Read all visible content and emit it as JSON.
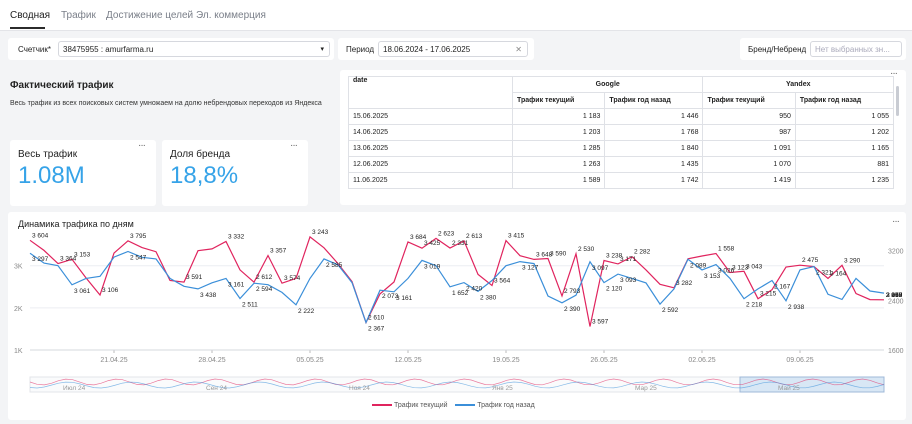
{
  "tabs": [
    {
      "label": "Сводная",
      "active": true
    },
    {
      "label": "Трафик",
      "active": false
    },
    {
      "label": "Достижение целей",
      "active": false
    },
    {
      "label": "Эл. коммерция",
      "active": false
    }
  ],
  "filters": {
    "counter_label": "Счетчик*",
    "counter_value": "38475955 : amurfarma.ru",
    "period_label": "Период",
    "period_value": "18.06.2024 - 17.06.2025",
    "brand_label": "Бренд/Небренд",
    "brand_placeholder": "Нет выбранных зн..."
  },
  "info": {
    "title": "Фактический трафик",
    "description": "Весь трафик из всех поисковых систем умножаем на долю небрендовых переходов из Яндекса"
  },
  "kpis": [
    {
      "label": "Весь трафик",
      "value": "1.08M"
    },
    {
      "label": "Доля бренда",
      "value": "18,8%"
    }
  ],
  "table": {
    "col_date": "date",
    "groups": [
      "Google",
      "Yandex"
    ],
    "sub_headers": [
      "Трафик текущий",
      "Трафик год назад",
      "Трафик текущий",
      "Трафик год назад"
    ],
    "rows": [
      [
        "15.06.2025",
        "1 183",
        "1 446",
        "950",
        "1 055"
      ],
      [
        "14.06.2025",
        "1 203",
        "1 768",
        "987",
        "1 202"
      ],
      [
        "13.06.2025",
        "1 285",
        "1 840",
        "1 091",
        "1 165"
      ],
      [
        "12.06.2025",
        "1 263",
        "1 435",
        "1 070",
        "881"
      ],
      [
        "11.06.2025",
        "1 589",
        "1 742",
        "1 419",
        "1 235"
      ]
    ]
  },
  "chart": {
    "title": "Динамика трафика по дням",
    "legend_current": "Трафик текущий",
    "legend_prev": "Трафик год назад",
    "color_current": "#e0245e",
    "color_prev": "#3b8fd9",
    "nav_labels": [
      "Июл 24",
      "Сен 24",
      "Ноя 24",
      "Янв 25",
      "Мар 25",
      "Май 25"
    ]
  },
  "chart_data": {
    "type": "line",
    "title": "Динамика трафика по дням",
    "x": [
      "2025-04-15",
      "2025-04-16",
      "2025-04-17",
      "2025-04-18",
      "2025-04-19",
      "2025-04-20",
      "2025-04-21",
      "2025-04-22",
      "2025-04-23",
      "2025-04-24",
      "2025-04-25",
      "2025-04-26",
      "2025-04-27",
      "2025-04-28",
      "2025-04-29",
      "2025-04-30",
      "2025-05-01",
      "2025-05-02",
      "2025-05-03",
      "2025-05-04",
      "2025-05-05",
      "2025-05-06",
      "2025-05-07",
      "2025-05-08",
      "2025-05-09",
      "2025-05-10",
      "2025-05-11",
      "2025-05-12",
      "2025-05-13",
      "2025-05-14",
      "2025-05-15",
      "2025-05-16",
      "2025-05-17",
      "2025-05-18",
      "2025-05-19",
      "2025-05-20",
      "2025-05-21",
      "2025-05-22",
      "2025-05-23",
      "2025-05-24",
      "2025-05-25",
      "2025-05-26",
      "2025-05-27",
      "2025-05-28",
      "2025-05-29",
      "2025-05-30",
      "2025-05-31",
      "2025-06-01",
      "2025-06-02",
      "2025-06-03",
      "2025-06-04",
      "2025-06-05",
      "2025-06-06",
      "2025-06-07",
      "2025-06-08",
      "2025-06-09",
      "2025-06-10",
      "2025-06-11",
      "2025-06-12",
      "2025-06-13",
      "2025-06-14",
      "2025-06-15"
    ],
    "x_tick_labels": [
      "21.04.25",
      "28.04.25",
      "05.05.25",
      "12.05.25",
      "19.05.25",
      "26.05.25",
      "02.06.25",
      "09.06.25"
    ],
    "left_axis_ticks": [
      "3K",
      "2K",
      "1K"
    ],
    "right_axis_ticks": [
      "3200",
      "2400",
      "1600"
    ],
    "ylim_left": [
      1000,
      3800
    ],
    "ylim_right": [
      1600,
      3500
    ],
    "series": [
      {
        "name": "Трафик текущий",
        "color": "#e0245e",
        "values": [
          3604,
          3364,
          3050,
          3153,
          2710,
          2306,
          3300,
          3591,
          3430,
          3332,
          2650,
          2612,
          3357,
          3400,
          3574,
          2900,
          2610,
          3243,
          2585,
          2700,
          3684,
          3425,
          3050,
          2623,
          1650,
          2331,
          2613,
          3564,
          3415,
          3648,
          3420,
          3590,
          2793,
          2530,
          3597,
          3238,
          3150,
          3171,
          2282,
          3282,
          1558,
          3123,
          3043,
          3215,
          2900,
          2560,
          2475,
          3164,
          3230,
          3290,
          2840,
          2867,
          2218,
          2430,
          2969,
          3013,
          2978,
          2700,
          3010,
          2340,
          2197,
          2190
        ]
      },
      {
        "name": "Трафик год назад",
        "color": "#3b8fd9",
        "values": [
          3297,
          3061,
          3000,
          2547,
          2700,
          2750,
          3205,
          3338,
          3200,
          3161,
          2700,
          2511,
          2450,
          2594,
          2700,
          2222,
          2585,
          2550,
          2367,
          2073,
          2700,
          3161,
          3019,
          2600,
          1652,
          2420,
          2380,
          2700,
          3127,
          3000,
          2500,
          2600,
          2390,
          2650,
          3000,
          3097,
          3050,
          2282,
          2120,
          2300,
          3093,
          2600,
          2800,
          2700,
          2592,
          2089,
          2450,
          3153,
          2900,
          3026,
          2700,
          2218,
          2450,
          2650,
          2167,
          2900,
          2978,
          2321,
          2200,
          2700,
          2400,
          2350
        ]
      }
    ],
    "data_labels_current": [
      "3 604",
      "3 364",
      "3 153",
      "3 106",
      "3 795",
      "3 591",
      "3 332",
      "2 612",
      "3 357",
      "3 574",
      "3 243",
      "2 610",
      "3 684",
      "3 425",
      "2 623",
      "2 331",
      "2 613",
      "3 564",
      "3 415",
      "3 648",
      "3 590",
      "2 793",
      "2 530",
      "3 597",
      "3 238",
      "3 171",
      "2 282",
      "3 282",
      "1 558",
      "3 123",
      "3 043",
      "3 215",
      "2 475",
      "3 164",
      "3 290",
      "2 867",
      "2 218",
      "2 969",
      "3 013",
      "2 978",
      "3 010",
      "2 197"
    ],
    "data_labels_prev": [
      "3 297",
      "3 061",
      "2 547",
      "3 438",
      "3 161",
      "2 511",
      "2 594",
      "2 222",
      "2 585",
      "2 367",
      "2 073",
      "3 161",
      "3 019",
      "1 652",
      "2 420",
      "2 380",
      "3 127",
      "2 390",
      "3 097",
      "2 120",
      "3 093",
      "2 592",
      "2 089",
      "3 153",
      "3 026",
      "2 218",
      "2 167",
      "2 938",
      "2 321"
    ],
    "legend": "bottom-center",
    "grid": true
  }
}
